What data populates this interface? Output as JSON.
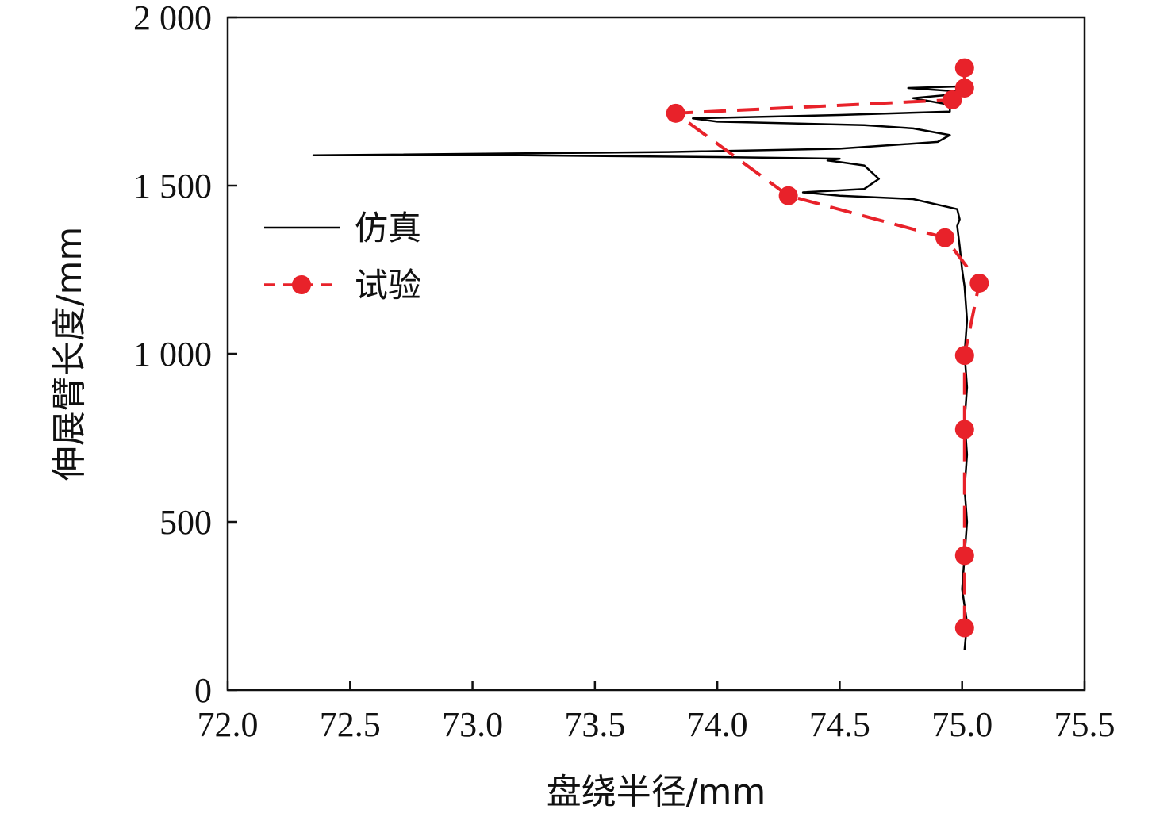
{
  "chart_data": {
    "type": "line",
    "title": "",
    "xlabel": "盘绕半径/mm",
    "ylabel": "伸展臂长度/mm",
    "xlim": [
      72.0,
      75.5
    ],
    "ylim": [
      0,
      2000
    ],
    "x_ticks": [
      72.0,
      72.5,
      73.0,
      73.5,
      74.0,
      74.5,
      75.0,
      75.5
    ],
    "x_tick_labels": [
      "72.0",
      "72.5",
      "73.0",
      "73.5",
      "74.0",
      "74.5",
      "75.0",
      "75.5"
    ],
    "y_ticks": [
      0,
      500,
      1000,
      1500,
      2000
    ],
    "y_tick_labels": [
      "0",
      "500",
      "1 000",
      "1 500",
      "2 000"
    ],
    "grid": false,
    "legend_position": "left-center",
    "series": [
      {
        "name": "仿真",
        "style": "solid",
        "color": "#000000",
        "points": [
          [
            75.01,
            120
          ],
          [
            75.02,
            200
          ],
          [
            75.0,
            300
          ],
          [
            75.01,
            400
          ],
          [
            75.02,
            500
          ],
          [
            75.01,
            600
          ],
          [
            75.02,
            700
          ],
          [
            75.01,
            800
          ],
          [
            75.02,
            900
          ],
          [
            75.01,
            1000
          ],
          [
            75.02,
            1100
          ],
          [
            75.01,
            1200
          ],
          [
            75.0,
            1250
          ],
          [
            74.99,
            1320
          ],
          [
            74.98,
            1380
          ],
          [
            74.99,
            1400
          ],
          [
            74.98,
            1430
          ],
          [
            74.8,
            1460
          ],
          [
            74.5,
            1470
          ],
          [
            74.35,
            1480
          ],
          [
            74.6,
            1490
          ],
          [
            74.66,
            1520
          ],
          [
            74.6,
            1560
          ],
          [
            74.5,
            1570
          ],
          [
            74.45,
            1575
          ],
          [
            74.5,
            1580
          ],
          [
            74.0,
            1585
          ],
          [
            73.2,
            1590
          ],
          [
            72.35,
            1590
          ],
          [
            73.8,
            1600
          ],
          [
            74.5,
            1610
          ],
          [
            74.9,
            1630
          ],
          [
            74.95,
            1650
          ],
          [
            74.8,
            1670
          ],
          [
            74.6,
            1680
          ],
          [
            74.0,
            1690
          ],
          [
            73.9,
            1700
          ],
          [
            74.5,
            1710
          ],
          [
            74.95,
            1720
          ],
          [
            74.95,
            1740
          ],
          [
            74.8,
            1760
          ],
          [
            74.95,
            1770
          ],
          [
            74.98,
            1780
          ],
          [
            74.78,
            1790
          ],
          [
            75.0,
            1795
          ]
        ]
      },
      {
        "name": "试验",
        "style": "dashed",
        "color": "#e8222a",
        "marker": "circle",
        "points": [
          [
            75.01,
            185
          ],
          [
            75.01,
            400
          ],
          [
            75.01,
            775
          ],
          [
            75.01,
            995
          ],
          [
            75.07,
            1210
          ],
          [
            74.93,
            1345
          ],
          [
            74.29,
            1470
          ],
          [
            73.83,
            1715
          ],
          [
            74.96,
            1755
          ],
          [
            75.01,
            1790
          ],
          [
            75.01,
            1850
          ]
        ]
      }
    ]
  }
}
